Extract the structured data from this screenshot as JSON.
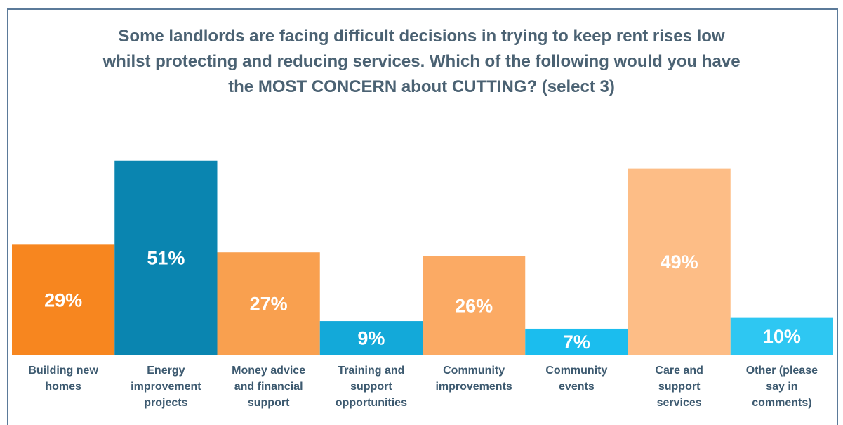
{
  "chart_data": {
    "type": "bar",
    "title": "Some landlords are facing difficult decisions in trying to keep rent rises low\nwhilst protecting and reducing services.  Which of the following would you have\nthe MOST CONCERN about CUTTING? (select 3)",
    "categories": [
      "Building new\nhomes",
      "Energy\nimprovement\nprojects",
      "Money advice\nand financial\nsupport",
      "Training and\nsupport\nopportunities",
      "Community\nimprovements",
      "Community\nevents",
      "Care and\nsupport\nservices",
      "Other  (please\nsay in\ncomments)"
    ],
    "values": [
      29,
      51,
      27,
      9,
      26,
      7,
      49,
      10
    ],
    "value_labels": [
      "29%",
      "51%",
      "27%",
      "9%",
      "26%",
      "7%",
      "49%",
      "10%"
    ],
    "colors": [
      "#f7861f",
      "#0a85b0",
      "#f9a04f",
      "#13a9d9",
      "#fbaa64",
      "#1bbdee",
      "#fdbd86",
      "#2ec7f2"
    ],
    "ylim": [
      0,
      55
    ]
  }
}
